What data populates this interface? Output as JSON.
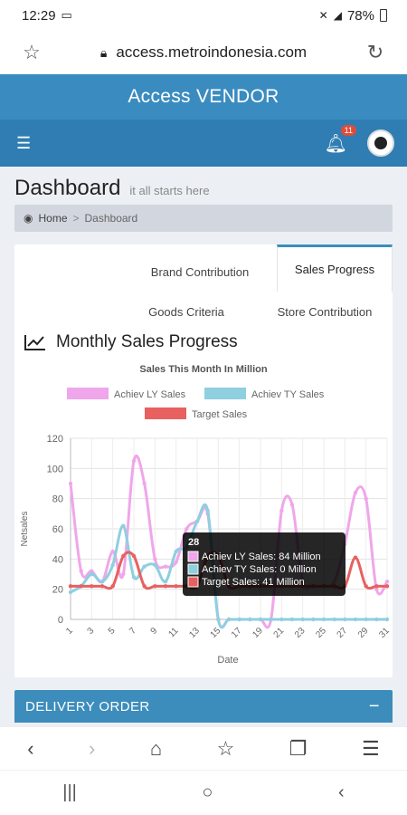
{
  "status": {
    "time": "12:29",
    "battery": "78%"
  },
  "browser": {
    "url": "access.metroindonesia.com"
  },
  "app": {
    "title": "Access VENDOR",
    "notifications": "11"
  },
  "page": {
    "title": "Dashboard",
    "subtitle": "it all starts here"
  },
  "breadcrumb": {
    "home": "Home",
    "current": "Dashboard",
    "separator": ">"
  },
  "tabs": [
    {
      "label": "Brand Contribution",
      "active": false
    },
    {
      "label": "Sales Progress",
      "active": true
    },
    {
      "label": "Goods Criteria",
      "active": false
    },
    {
      "label": "Store Contribution",
      "active": false
    }
  ],
  "section": {
    "title": "Monthly Sales Progress"
  },
  "chart_data": {
    "type": "line",
    "title": "Sales This Month In Million",
    "xlabel": "Date",
    "ylabel": "Netsales",
    "ylim": [
      0,
      120
    ],
    "yticks": [
      0,
      20,
      40,
      60,
      80,
      100,
      120
    ],
    "x": [
      1,
      2,
      3,
      4,
      5,
      6,
      7,
      8,
      9,
      10,
      11,
      12,
      13,
      14,
      15,
      16,
      17,
      18,
      19,
      20,
      21,
      22,
      23,
      24,
      25,
      26,
      27,
      28,
      29,
      30,
      31
    ],
    "xtick_labels": [
      "1",
      "3",
      "5",
      "7",
      "9",
      "11",
      "13",
      "15",
      "17",
      "19",
      "21",
      "23",
      "25",
      "27",
      "29",
      "31"
    ],
    "grid": true,
    "legend_position": "top",
    "series": [
      {
        "name": "Achiev LY Sales",
        "color": "#f0a6ea",
        "values": [
          90,
          32,
          32,
          25,
          45,
          30,
          105,
          90,
          40,
          35,
          38,
          60,
          65,
          70,
          0,
          0,
          0,
          0,
          0,
          0,
          72,
          76,
          25,
          22,
          22,
          25,
          50,
          84,
          80,
          20,
          25
        ]
      },
      {
        "name": "Achiev TY Sales",
        "color": "#8ecfe0",
        "values": [
          18,
          22,
          30,
          25,
          36,
          62,
          28,
          35,
          36,
          25,
          45,
          48,
          65,
          72,
          0,
          0,
          0,
          0,
          0,
          0,
          0,
          0,
          0,
          0,
          0,
          0,
          0,
          0,
          0,
          0,
          0
        ]
      },
      {
        "name": "Target Sales",
        "color": "#e86060",
        "values": [
          22,
          22,
          22,
          22,
          22,
          42,
          42,
          22,
          22,
          22,
          22,
          22,
          22,
          42,
          42,
          22,
          22,
          22,
          22,
          22,
          22,
          22,
          22,
          22,
          22,
          22,
          22,
          41,
          22,
          22,
          22
        ]
      }
    ],
    "tooltip": {
      "x": 28,
      "title": "28",
      "lines": [
        "Achiev LY Sales: 84 Million",
        "Achiev TY Sales: 0 Million",
        "Target Sales: 41 Million"
      ]
    }
  },
  "delivery": {
    "title": "DELIVERY ORDER",
    "toggle": "−"
  }
}
